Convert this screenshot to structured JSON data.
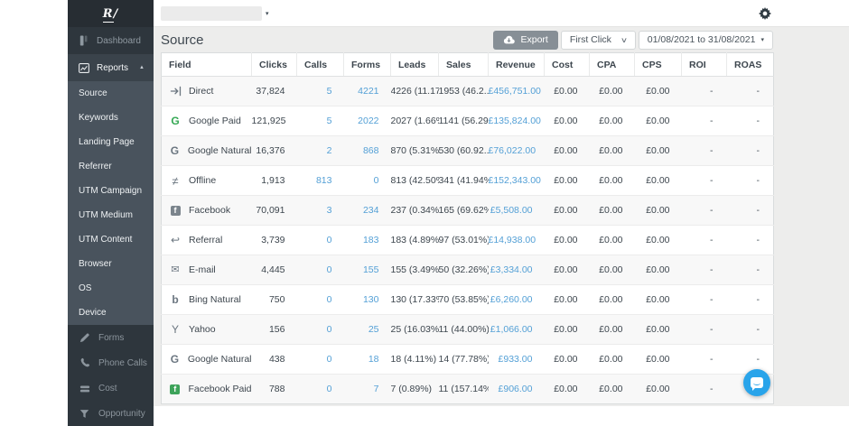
{
  "brand": {
    "logo_text": "R/"
  },
  "icons": {
    "caret_down": "▾",
    "caret_up": "▲",
    "chevron_down": "∨"
  },
  "topbar": {
    "account_dropdown_value": ""
  },
  "sidebar": {
    "dashboard": {
      "label": "Dashboard",
      "icon": "dashboard-icon"
    },
    "reports": {
      "label": "Reports",
      "icon": "chart-icon"
    },
    "report_items": [
      "Source",
      "Keywords",
      "Landing Page",
      "Referrer",
      "UTM Campaign",
      "UTM Medium",
      "UTM Content",
      "Browser",
      "OS",
      "Device"
    ],
    "tools": [
      {
        "label": "Forms",
        "icon": "pencil-icon"
      },
      {
        "label": "Phone Calls",
        "icon": "phone-icon"
      },
      {
        "label": "Cost",
        "icon": "coins-icon"
      },
      {
        "label": "Opportunity",
        "icon": "funnel-icon"
      }
    ]
  },
  "header": {
    "title": "Source",
    "export_label": "Export",
    "attribution_selected": "First Click",
    "date_range": "01/08/2021 to 31/08/2021"
  },
  "table": {
    "columns": [
      "Field",
      "Clicks",
      "Calls",
      "Forms",
      "Leads",
      "Sales",
      "Revenue",
      "Cost",
      "CPA",
      "CPS",
      "ROI",
      "ROAS"
    ],
    "rows": [
      {
        "field": "Direct",
        "icon": "sign-in-icon",
        "icon_color": "#6b7680",
        "clicks": "37,824",
        "calls": "5",
        "forms": "4221",
        "leads": "4226 (11.17%)",
        "sales": "1953 (46.2..",
        "revenue": "£456,751.00",
        "cost": "£0.00",
        "cpa": "£0.00",
        "cps": "£0.00",
        "roi": "-",
        "roas": "-"
      },
      {
        "field": "Google Paid",
        "icon": "google-icon",
        "icon_color": "#34a853",
        "clicks": "121,925",
        "calls": "5",
        "forms": "2022",
        "leads": "2027 (1.66%)",
        "sales": "1141 (56.29%)",
        "revenue": "£135,824.00",
        "cost": "£0.00",
        "cpa": "£0.00",
        "cps": "£0.00",
        "roi": "-",
        "roas": "-"
      },
      {
        "field": "Google Natural",
        "icon": "google-icon",
        "icon_color": "#6b7680",
        "clicks": "16,376",
        "calls": "2",
        "forms": "868",
        "leads": "870 (5.31%)",
        "sales": "530 (60.92..",
        "revenue": "£76,022.00",
        "cost": "£0.00",
        "cpa": "£0.00",
        "cps": "£0.00",
        "roi": "-",
        "roas": "-"
      },
      {
        "field": "Offline",
        "icon": "not-equal-icon",
        "icon_color": "#6b7680",
        "clicks": "1,913",
        "calls": "813",
        "forms": "0",
        "leads": "813 (42.50%)",
        "sales": "341 (41.94%)",
        "revenue": "£152,343.00",
        "cost": "£0.00",
        "cpa": "£0.00",
        "cps": "£0.00",
        "roi": "-",
        "roas": "-"
      },
      {
        "field": "Facebook",
        "icon": "facebook-icon",
        "icon_color": "#7b848c",
        "clicks": "70,091",
        "calls": "3",
        "forms": "234",
        "leads": "237 (0.34%)",
        "sales": "165 (69.62%)",
        "revenue": "£5,508.00",
        "cost": "£0.00",
        "cpa": "£0.00",
        "cps": "£0.00",
        "roi": "-",
        "roas": "-"
      },
      {
        "field": "Referral",
        "icon": "reply-icon",
        "icon_color": "#6b7680",
        "clicks": "3,739",
        "calls": "0",
        "forms": "183",
        "leads": "183 (4.89%)",
        "sales": "97 (53.01%)",
        "revenue": "£14,938.00",
        "cost": "£0.00",
        "cpa": "£0.00",
        "cps": "£0.00",
        "roi": "-",
        "roas": "-"
      },
      {
        "field": "E-mail",
        "icon": "envelope-icon",
        "icon_color": "#6b7680",
        "clicks": "4,445",
        "calls": "0",
        "forms": "155",
        "leads": "155 (3.49%)",
        "sales": "50 (32.26%)",
        "revenue": "£3,334.00",
        "cost": "£0.00",
        "cpa": "£0.00",
        "cps": "£0.00",
        "roi": "-",
        "roas": "-"
      },
      {
        "field": "Bing Natural",
        "icon": "bing-icon",
        "icon_color": "#6b7680",
        "clicks": "750",
        "calls": "0",
        "forms": "130",
        "leads": "130 (17.33%)",
        "sales": "70 (53.85%)",
        "revenue": "£6,260.00",
        "cost": "£0.00",
        "cpa": "£0.00",
        "cps": "£0.00",
        "roi": "-",
        "roas": "-"
      },
      {
        "field": "Yahoo",
        "icon": "yahoo-icon",
        "icon_color": "#6b7680",
        "clicks": "156",
        "calls": "0",
        "forms": "25",
        "leads": "25 (16.03%)",
        "sales": "11 (44.00%)",
        "revenue": "£1,066.00",
        "cost": "£0.00",
        "cpa": "£0.00",
        "cps": "£0.00",
        "roi": "-",
        "roas": "-"
      },
      {
        "field": "Google Natural",
        "icon": "google-icon",
        "icon_color": "#6b7680",
        "clicks": "438",
        "calls": "0",
        "forms": "18",
        "leads": "18 (4.11%)",
        "sales": "14 (77.78%)",
        "revenue": "£933.00",
        "cost": "£0.00",
        "cpa": "£0.00",
        "cps": "£0.00",
        "roi": "-",
        "roas": "-"
      },
      {
        "field": "Facebook Paid",
        "icon": "facebook-icon",
        "icon_color": "#3da35a",
        "clicks": "788",
        "calls": "0",
        "forms": "7",
        "leads": "7 (0.89%)",
        "sales": "11 (157.14%)",
        "revenue": "£906.00",
        "cost": "£0.00",
        "cpa": "£0.00",
        "cps": "£0.00",
        "roi": "-",
        "roas": "-"
      }
    ]
  },
  "colors": {
    "link_blue": "#54a0d6",
    "sidebar_dark": "#2e363d",
    "submenu_bg": "#49535d",
    "chat_blue": "#29a4ea",
    "export_gray": "#878f96"
  }
}
